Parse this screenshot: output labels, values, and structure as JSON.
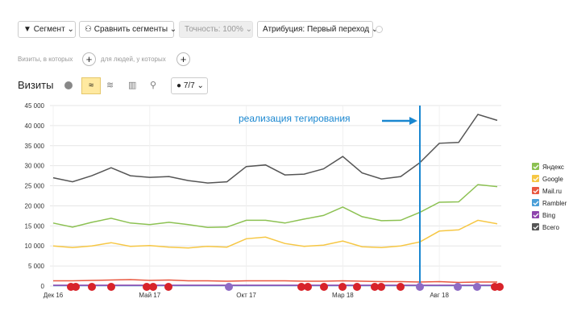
{
  "toolbar": {
    "segment": "Сегмент",
    "compare": "Сравнить сегменты",
    "accuracy": "Точность: 100%",
    "attribution": "Атрибуция: Первый переход",
    "filter_visits": "Визиты, в которых",
    "filter_people": "для людей, у которых",
    "metric": "Визиты",
    "series_count": "7/7"
  },
  "chart_data": {
    "type": "line",
    "annotation": "реализация тегирования",
    "categories": [
      "Дек 16",
      null,
      null,
      null,
      null,
      "Май 17",
      null,
      null,
      null,
      null,
      "Окт 17",
      null,
      null,
      null,
      null,
      "Мар 18",
      null,
      null,
      null,
      null,
      "Авг 18",
      null,
      null,
      null
    ],
    "ylim": [
      0,
      45000
    ],
    "yticks": [
      0,
      {
        "value": 5000,
        "label": "5 000"
      },
      {
        "value": 10000,
        "label": "10 000"
      },
      {
        "value": 15000,
        "label": "15 000"
      },
      {
        "value": 20000,
        "label": "20 000"
      },
      {
        "value": 25000,
        "label": "25 000"
      },
      {
        "value": 30000,
        "label": "30 000"
      },
      {
        "value": 35000,
        "label": "35 000"
      },
      {
        "value": 40000,
        "label": "40 000"
      },
      {
        "value": 45000,
        "label": "45 000"
      }
    ],
    "grid": true,
    "series": [
      {
        "name": "Яндекс",
        "color": "#8cc152",
        "values": [
          15700,
          14700,
          15900,
          16900,
          15700,
          15300,
          15900,
          15300,
          14600,
          14700,
          16400,
          16400,
          15700,
          16700,
          17600,
          19700,
          17300,
          16300,
          16400,
          18400,
          20900,
          21000,
          25300,
          24800
        ]
      },
      {
        "name": "Google",
        "color": "#f6c744",
        "values": [
          10000,
          9600,
          10000,
          10800,
          9900,
          10100,
          9700,
          9500,
          9900,
          9700,
          11800,
          12200,
          10600,
          9900,
          10200,
          11200,
          9800,
          9600,
          10000,
          11000,
          13700,
          14000,
          16400,
          15500
        ]
      },
      {
        "name": "Mail.ru",
        "color": "#e9573f",
        "values": [
          1300,
          1300,
          1400,
          1500,
          1600,
          1400,
          1500,
          1300,
          1300,
          1200,
          1300,
          1300,
          1300,
          1200,
          1200,
          1300,
          1200,
          1100,
          1100,
          1000,
          1100,
          900,
          1000,
          1000
        ]
      },
      {
        "name": "Rambler",
        "color": "#4a9fd8",
        "values": [
          100,
          100,
          100,
          100,
          100,
          100,
          100,
          100,
          100,
          100,
          100,
          100,
          100,
          100,
          100,
          100,
          100,
          100,
          100,
          100,
          100,
          100,
          100,
          100
        ]
      },
      {
        "name": "Bing",
        "color": "#8e44ad",
        "values": [
          200,
          200,
          200,
          200,
          200,
          200,
          200,
          200,
          200,
          200,
          200,
          200,
          200,
          200,
          200,
          200,
          200,
          200,
          200,
          200,
          200,
          200,
          200,
          200
        ]
      },
      {
        "name": "Всего",
        "color": "#555555",
        "values": [
          27000,
          26000,
          27500,
          29500,
          27500,
          27100,
          27300,
          26300,
          25700,
          26000,
          29800,
          30200,
          27700,
          27900,
          29200,
          32300,
          28200,
          26700,
          27300,
          30800,
          35600,
          35800,
          42800,
          41300
        ]
      }
    ]
  }
}
